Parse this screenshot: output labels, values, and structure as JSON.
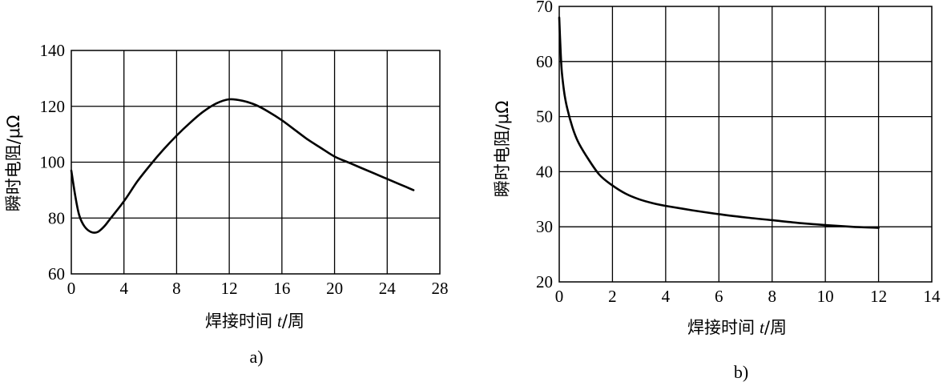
{
  "chart_data": [
    {
      "type": "line",
      "caption": "a)",
      "xlabel_prefix": "焊接时间",
      "xlabel_var": "t",
      "xlabel_unit": "/周",
      "ylabel": "瞬时电阻/μΩ",
      "xlim": [
        0,
        28
      ],
      "ylim": [
        60,
        140
      ],
      "xticks": [
        0,
        4,
        8,
        12,
        16,
        20,
        24,
        28
      ],
      "yticks": [
        60,
        80,
        100,
        120,
        140
      ],
      "grid": true,
      "series": [
        {
          "x": [
            0,
            0.3,
            0.6,
            1,
            1.5,
            2,
            2.5,
            3,
            4,
            5,
            6,
            7,
            8,
            9,
            10,
            11,
            12,
            13,
            14,
            15,
            16,
            17,
            18,
            19,
            20,
            21,
            22,
            23,
            24,
            25,
            26
          ],
          "values": [
            97,
            88,
            81,
            77,
            75,
            75,
            77,
            80,
            86,
            93,
            99,
            104.5,
            109.5,
            114,
            118,
            121,
            122.5,
            122,
            120.5,
            118,
            115,
            111.5,
            108,
            105,
            102,
            100,
            98,
            96,
            94,
            92,
            90
          ]
        }
      ]
    },
    {
      "type": "line",
      "caption": "b)",
      "xlabel_prefix": "焊接时间",
      "xlabel_var": "t",
      "xlabel_unit": "/周",
      "ylabel": "瞬时电阻/μΩ",
      "xlim": [
        0,
        14
      ],
      "ylim": [
        20,
        70
      ],
      "xticks": [
        0,
        2,
        4,
        6,
        8,
        10,
        12,
        14
      ],
      "yticks": [
        20,
        30,
        40,
        50,
        60,
        70
      ],
      "grid": true,
      "series": [
        {
          "x": [
            0,
            0.05,
            0.1,
            0.2,
            0.3,
            0.5,
            0.7,
            1,
            1.5,
            2,
            2.5,
            3,
            3.5,
            4,
            5,
            6,
            7,
            8,
            9,
            10,
            11,
            12
          ],
          "values": [
            68,
            62,
            58,
            54,
            51.5,
            48,
            45.5,
            43,
            39.5,
            37.5,
            36,
            35,
            34.3,
            33.8,
            33,
            32.3,
            31.7,
            31.2,
            30.7,
            30.3,
            30.0,
            29.8
          ]
        }
      ]
    }
  ]
}
